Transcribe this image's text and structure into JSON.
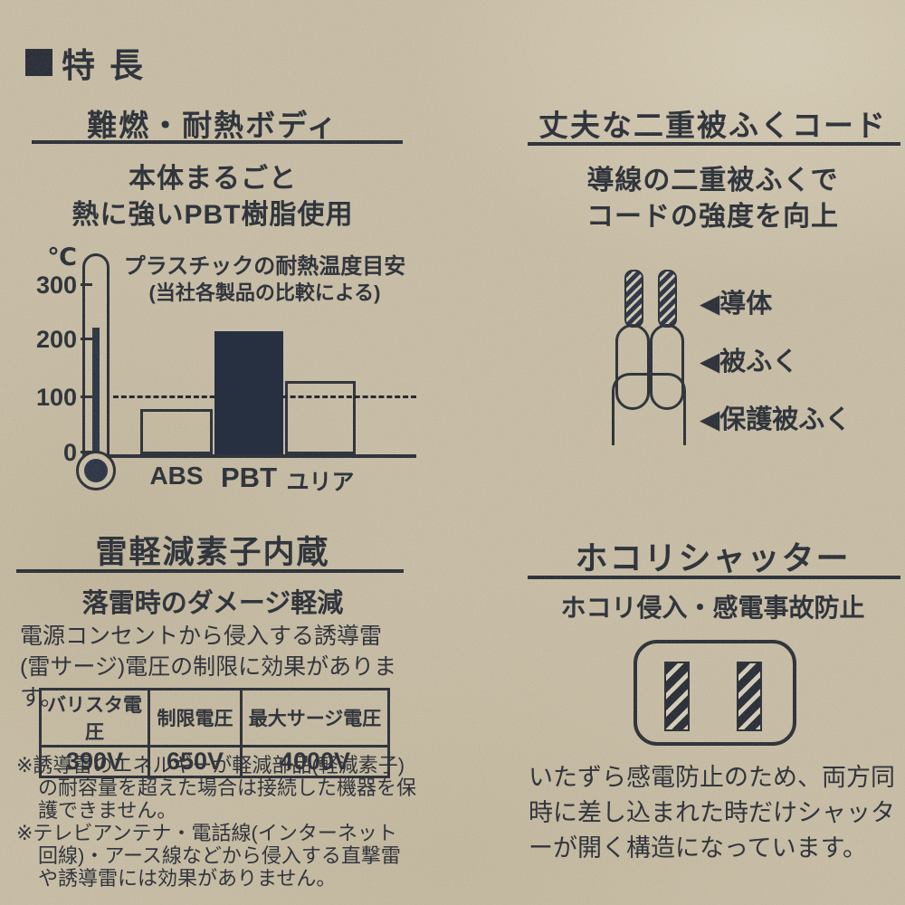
{
  "header": {
    "title": "特長"
  },
  "colors": {
    "ink": "#262b33",
    "paper": "#c8bda4",
    "bar_fill": "#273040"
  },
  "left": {
    "heat": {
      "title": "難燃・耐熱ボディ",
      "line1": "本体まるごと",
      "line2": "熱に強いPBT樹脂使用"
    },
    "surge": {
      "title": "雷軽減素子内蔵",
      "subtitle": "落雷時のダメージ軽減",
      "body": "電源コンセントから侵入する誘導雷(雷サージ)電圧の制限に効果があります。",
      "table": {
        "headers": [
          "バリスタ電圧",
          "制限電圧",
          "最大サージ電圧"
        ],
        "values": [
          "390V",
          "650V",
          "4000V"
        ]
      },
      "notes": [
        "※誘導雷のエネルギーが軽減部品(軽減素子)の耐容量を超えた場合は接続した機器を保護できません。",
        "※テレビアンテナ・電話線(インターネット回線)・アース線などから侵入する直撃雷や誘導雷には効果がありません。"
      ]
    }
  },
  "right": {
    "cord": {
      "title": "丈夫な二重被ふくコード",
      "line1": "導線の二重被ふくで",
      "line2": "コードの強度を向上",
      "labels": [
        "◀導体",
        "◀被ふく",
        "◀保護被ふく"
      ]
    },
    "shutter": {
      "title": "ホコリシャッター",
      "subtitle": "ホコリ侵入・感電事故防止",
      "body": "いたずら感電防止のため、両方同時に差し込まれた時だけシャッターが開く構造になっています。"
    }
  },
  "chart_data": {
    "type": "bar",
    "title": "プラスチックの耐熱温度目安",
    "subtitle": "(当社各製品の比較による)",
    "unit": "℃",
    "categories": [
      "ABS",
      "PBT",
      "ユリア"
    ],
    "values": [
      80,
      220,
      130
    ],
    "yticks": [
      "0",
      "100",
      "200",
      "300"
    ],
    "ylim": [
      0,
      320
    ],
    "reference_line": 100,
    "highlighted_category": "PBT",
    "bar_styles": [
      "outline",
      "filled",
      "outline"
    ],
    "grid": false,
    "legend": false,
    "ylabel": "℃",
    "xlabel": ""
  }
}
